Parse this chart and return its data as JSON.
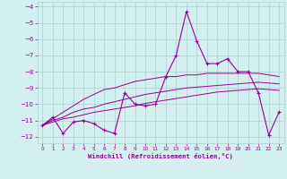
{
  "x": [
    0,
    1,
    2,
    3,
    4,
    5,
    6,
    7,
    8,
    9,
    10,
    11,
    12,
    13,
    14,
    15,
    16,
    17,
    18,
    19,
    20,
    21,
    22,
    23
  ],
  "y_main": [
    -11.3,
    -10.8,
    -11.8,
    -11.1,
    -11.0,
    -11.2,
    -11.6,
    -11.8,
    -9.3,
    -10.0,
    -10.1,
    -10.0,
    -8.3,
    -7.0,
    -4.3,
    -6.1,
    -7.5,
    -7.5,
    -7.2,
    -8.0,
    -8.0,
    -9.3,
    -11.9,
    -10.5
  ],
  "y_line1": [
    -11.3,
    -10.9,
    -10.5,
    -10.1,
    -9.7,
    -9.4,
    -9.1,
    -9.0,
    -8.8,
    -8.6,
    -8.5,
    -8.4,
    -8.3,
    -8.3,
    -8.2,
    -8.2,
    -8.1,
    -8.1,
    -8.1,
    -8.1,
    -8.1,
    -8.1,
    -8.2,
    -8.3
  ],
  "y_line2": [
    -11.3,
    -11.0,
    -10.8,
    -10.5,
    -10.3,
    -10.2,
    -10.0,
    -9.85,
    -9.7,
    -9.55,
    -9.4,
    -9.3,
    -9.2,
    -9.1,
    -9.0,
    -8.95,
    -8.9,
    -8.85,
    -8.8,
    -8.75,
    -8.7,
    -8.65,
    -8.7,
    -8.75
  ],
  "y_line3": [
    -11.3,
    -11.1,
    -10.9,
    -10.8,
    -10.65,
    -10.5,
    -10.4,
    -10.3,
    -10.2,
    -10.1,
    -9.95,
    -9.85,
    -9.75,
    -9.65,
    -9.55,
    -9.45,
    -9.35,
    -9.25,
    -9.2,
    -9.15,
    -9.1,
    -9.05,
    -9.1,
    -9.15
  ],
  "line_color": "#990099",
  "bg_color": "#d4efef",
  "grid_color": "#aecece",
  "ylim": [
    -12.4,
    -3.7
  ],
  "xlim": [
    -0.5,
    23.5
  ],
  "yticks": [
    -4,
    -5,
    -6,
    -7,
    -8,
    -9,
    -10,
    -11,
    -12
  ],
  "xticks": [
    0,
    1,
    2,
    3,
    4,
    5,
    6,
    7,
    8,
    9,
    10,
    11,
    12,
    13,
    14,
    15,
    16,
    17,
    18,
    19,
    20,
    21,
    22,
    23
  ],
  "xlabel": "Windchill (Refroidissement éolien,°C)"
}
